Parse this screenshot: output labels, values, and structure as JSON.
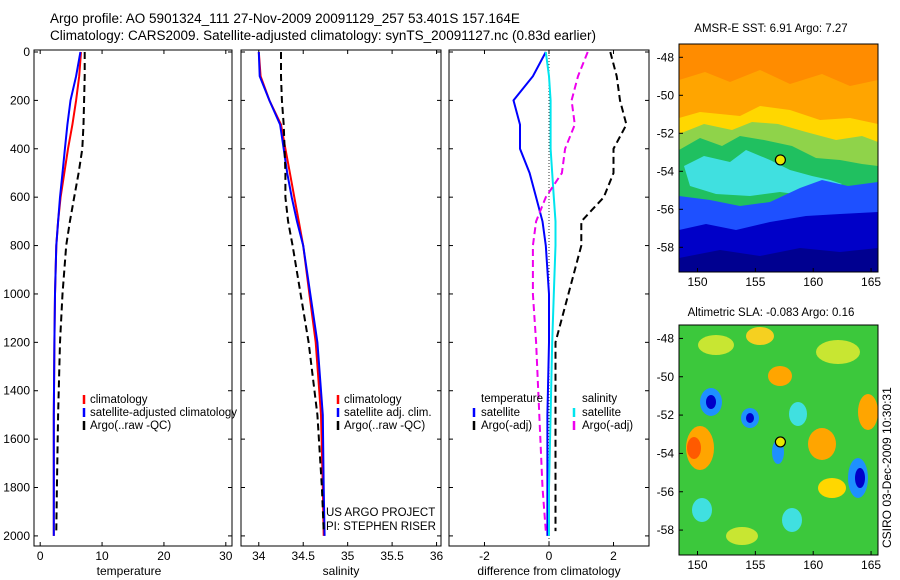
{
  "header": {
    "line1": "Argo profile: AO 5901324_111 27-Nov-2009 20091129_257 53.401S 157.164E",
    "line2": "Climatology: CARS2009. Satellite-adjusted climatology: synTS_20091127.nc (0.83d earlier)"
  },
  "credit": "CSIRO 03-Dec-2009 10:30:31",
  "colors": {
    "climatology": "#ff0000",
    "satellite": "#0000ff",
    "argo": "#000000",
    "satellite_sal": "#00e5ee",
    "argo_sal": "#ee00ee"
  },
  "chart_data": [
    {
      "id": "temperature",
      "type": "line",
      "xlabel": "temperature",
      "ylabel": "",
      "xlim": [
        -1,
        31
      ],
      "ylim": [
        2050,
        0
      ],
      "xticks": [
        0,
        10,
        20,
        30
      ],
      "yticks": [
        0,
        200,
        400,
        600,
        800,
        1000,
        1200,
        1400,
        1600,
        1800,
        2000
      ],
      "legend": [
        "climatology",
        "satellite-adjusted climatology",
        "Argo(..raw -QC)"
      ],
      "series": [
        {
          "name": "climatology",
          "color": "#ff0000",
          "dash": "solid",
          "x": [
            6.6,
            6.3,
            5.8,
            5.2,
            4.5,
            3.9,
            3.3,
            2.9,
            2.6,
            2.4,
            2.3,
            2.2,
            2.2,
            2.2
          ],
          "y": [
            0,
            100,
            200,
            300,
            400,
            500,
            600,
            700,
            800,
            1000,
            1200,
            1500,
            1800,
            2000
          ]
        },
        {
          "name": "satellite-adjusted climatology",
          "color": "#0000ff",
          "dash": "solid",
          "x": [
            6.5,
            5.8,
            4.9,
            4.4,
            4.0,
            3.6,
            3.2,
            2.9,
            2.6,
            2.4,
            2.3,
            2.2,
            2.2,
            2.2
          ],
          "y": [
            0,
            100,
            200,
            300,
            400,
            500,
            600,
            700,
            800,
            1000,
            1200,
            1500,
            1800,
            2000
          ]
        },
        {
          "name": "Argo(..raw -QC)",
          "color": "#000000",
          "dash": "dashed",
          "x": [
            7.2,
            7.2,
            7.1,
            7.0,
            6.8,
            6.2,
            5.5,
            4.8,
            4.2,
            3.6,
            3.2,
            2.9,
            2.7,
            2.6
          ],
          "y": [
            0,
            100,
            200,
            300,
            400,
            500,
            600,
            700,
            800,
            1000,
            1200,
            1500,
            1800,
            1980
          ]
        }
      ]
    },
    {
      "id": "salinity",
      "type": "line",
      "xlabel": "salinity",
      "ylabel": "",
      "xlim": [
        33.8,
        36.05
      ],
      "ylim": [
        2050,
        0
      ],
      "xticks": [
        34,
        34.5,
        35,
        35.5,
        36
      ],
      "legend": [
        "climatology",
        "satellite adj. clim.",
        "Argo(..raw -QC)"
      ],
      "annotations": [
        "US ARGO PROJECT",
        "PI: STEPHEN RISER"
      ],
      "series": [
        {
          "name": "climatology",
          "color": "#ff0000",
          "dash": "solid",
          "x": [
            34.0,
            34.02,
            34.12,
            34.25,
            34.3,
            34.35,
            34.4,
            34.45,
            34.5,
            34.57,
            34.64,
            34.7,
            34.72,
            34.73
          ],
          "y": [
            0,
            100,
            200,
            300,
            400,
            500,
            600,
            700,
            800,
            1000,
            1200,
            1500,
            1800,
            2000
          ]
        },
        {
          "name": "satellite adj. clim.",
          "color": "#0000ff",
          "dash": "solid",
          "x": [
            34.0,
            34.01,
            34.12,
            34.24,
            34.28,
            34.32,
            34.37,
            34.43,
            34.5,
            34.58,
            34.66,
            34.72,
            34.73,
            34.74
          ],
          "y": [
            0,
            100,
            200,
            300,
            400,
            500,
            600,
            700,
            800,
            1000,
            1200,
            1500,
            1800,
            2000
          ]
        },
        {
          "name": "Argo(..raw -QC)",
          "color": "#000000",
          "dash": "dashed",
          "x": [
            34.25,
            34.25,
            34.26,
            34.28,
            34.29,
            34.3,
            34.3,
            34.33,
            34.38,
            34.47,
            34.56,
            34.66,
            34.71,
            34.73
          ],
          "y": [
            0,
            100,
            200,
            300,
            400,
            500,
            600,
            700,
            800,
            1000,
            1200,
            1500,
            1800,
            1980
          ]
        }
      ]
    },
    {
      "id": "difference",
      "type": "line",
      "xlabel": "difference from climatology",
      "ylabel": "",
      "xlim": [
        -3.1,
        3.1
      ],
      "ylim": [
        2050,
        0
      ],
      "xticks": [
        -2,
        0,
        2
      ],
      "legend": [
        "temperature",
        "satellite",
        "Argo(-adj)",
        "salinity",
        "satellite",
        "Argo(-adj)"
      ],
      "series": [
        {
          "name": "satellite",
          "group": "temperature",
          "color": "#0000ff",
          "dash": "solid",
          "x": [
            -0.1,
            -0.5,
            -1.1,
            -0.9,
            -0.9,
            -0.6,
            -0.4,
            -0.2,
            -0.1,
            0.0,
            0.0,
            -0.05,
            -0.05,
            -0.05
          ],
          "y": [
            0,
            100,
            200,
            300,
            400,
            500,
            600,
            700,
            800,
            1000,
            1200,
            1500,
            1800,
            2000
          ]
        },
        {
          "name": "Argo(-adj)",
          "group": "temperature",
          "color": "#000000",
          "dash": "dashed",
          "x": [
            1.9,
            2.1,
            2.2,
            2.4,
            2.0,
            2.0,
            1.7,
            1.0,
            1.0,
            0.6,
            0.2,
            0.2,
            0.2,
            0.2
          ],
          "y": [
            0,
            100,
            200,
            300,
            400,
            500,
            600,
            700,
            800,
            1000,
            1200,
            1500,
            1800,
            1980
          ]
        },
        {
          "name": "satellite",
          "group": "salinity",
          "color": "#00e5ee",
          "dash": "solid",
          "x": [
            -0.1,
            0.0,
            0.05,
            0.05,
            0.05,
            0.1,
            0.15,
            0.2,
            0.2,
            0.15,
            0.1,
            0.05,
            0.0,
            0.0
          ],
          "y": [
            0,
            100,
            200,
            300,
            400,
            500,
            600,
            700,
            800,
            1000,
            1200,
            1500,
            1800,
            2000
          ]
        },
        {
          "name": "Argo(-adj)",
          "group": "salinity",
          "color": "#ee00ee",
          "dash": "dashed",
          "x": [
            1.2,
            0.9,
            0.7,
            0.8,
            0.5,
            0.4,
            -0.1,
            -0.4,
            -0.5,
            -0.5,
            -0.4,
            -0.3,
            -0.2,
            -0.1
          ],
          "y": [
            0,
            100,
            200,
            300,
            400,
            500,
            600,
            700,
            800,
            1000,
            1200,
            1500,
            1800,
            1980
          ]
        }
      ]
    },
    {
      "id": "sst-map",
      "type": "heatmap",
      "title": "AMSR-E SST: 6.91  Argo: 7.27",
      "xlim": [
        148.4,
        165.6
      ],
      "ylim": [
        -59.3,
        -47.3
      ],
      "xticks": [
        150,
        155,
        160,
        165
      ],
      "yticks": [
        -48,
        -50,
        -52,
        -54,
        -56,
        -58
      ],
      "marker": {
        "lon": 157.164,
        "lat": -53.401
      }
    },
    {
      "id": "sla-map",
      "type": "heatmap",
      "title": "Altimetric SLA: -0.083  Argo: 0.16",
      "xlim": [
        148.4,
        165.6
      ],
      "ylim": [
        -59.3,
        -47.3
      ],
      "xticks": [
        150,
        155,
        160,
        165
      ],
      "yticks": [
        -48,
        -50,
        -52,
        -54,
        -56,
        -58
      ],
      "marker": {
        "lon": 157.164,
        "lat": -53.401
      }
    }
  ]
}
